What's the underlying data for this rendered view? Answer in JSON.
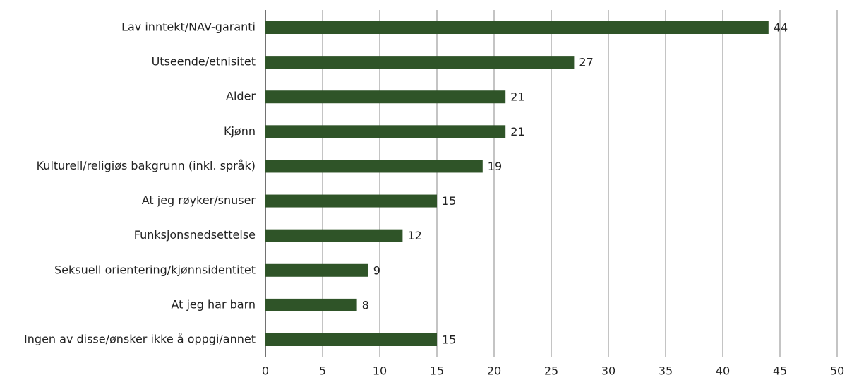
{
  "chart_data": {
    "type": "bar",
    "orientation": "horizontal",
    "categories": [
      "Lav inntekt/NAV-garanti",
      "Utseende/etnisitet",
      "Alder",
      "Kjønn",
      "Kulturell/religiøs bakgrunn (inkl. språk)",
      "At jeg røyker/snuser",
      "Funksjonsnedsettelse",
      "Seksuell orientering/kjønnsidentitet",
      "At jeg har barn",
      "Ingen av disse/ønsker ikke å oppgi/annet"
    ],
    "values": [
      44,
      27,
      21,
      21,
      19,
      15,
      12,
      9,
      8,
      15
    ],
    "color": "#2f5428",
    "xlim": [
      0,
      50
    ],
    "xticks": [
      0,
      5,
      10,
      15,
      20,
      25,
      30,
      35,
      40,
      45,
      50
    ],
    "grid": true
  }
}
